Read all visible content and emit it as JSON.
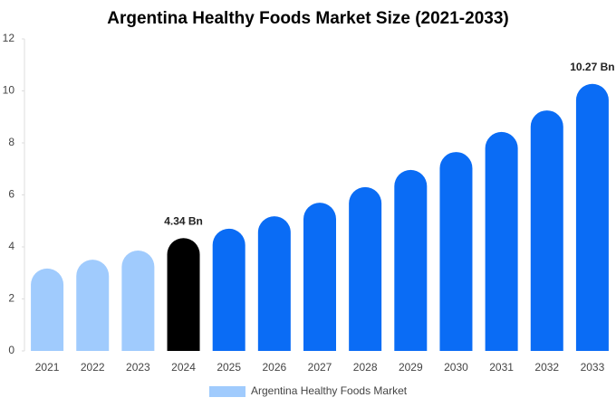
{
  "chart_data": {
    "type": "bar",
    "title": "Argentina Healthy Foods Market Size (2021-2033)",
    "categories": [
      "2021",
      "2022",
      "2023",
      "2024",
      "2025",
      "2026",
      "2027",
      "2028",
      "2029",
      "2030",
      "2031",
      "2032",
      "2033"
    ],
    "series": [
      {
        "name": "Argentina Healthy Foods Market",
        "color": "#a0cbfd",
        "colors": [
          "#a0cbfd",
          "#a0cbfd",
          "#a0cbfd",
          "#000000",
          "#0a6cf5",
          "#0a6cf5",
          "#0a6cf5",
          "#0a6cf5",
          "#0a6cf5",
          "#0a6cf5",
          "#0a6cf5",
          "#0a6cf5",
          "#0a6cf5"
        ],
        "values": [
          3.17,
          3.51,
          3.86,
          4.34,
          4.7,
          5.18,
          5.7,
          6.3,
          6.96,
          7.65,
          8.42,
          9.25,
          10.27
        ],
        "value_labels": [
          null,
          null,
          null,
          "4.34 Bn",
          null,
          null,
          null,
          null,
          null,
          null,
          null,
          null,
          "10.27 Bn"
        ]
      }
    ],
    "ylim": [
      0,
      12
    ],
    "yticks": [
      0,
      2,
      4,
      6,
      8,
      10,
      12
    ],
    "legend": "bottom"
  }
}
